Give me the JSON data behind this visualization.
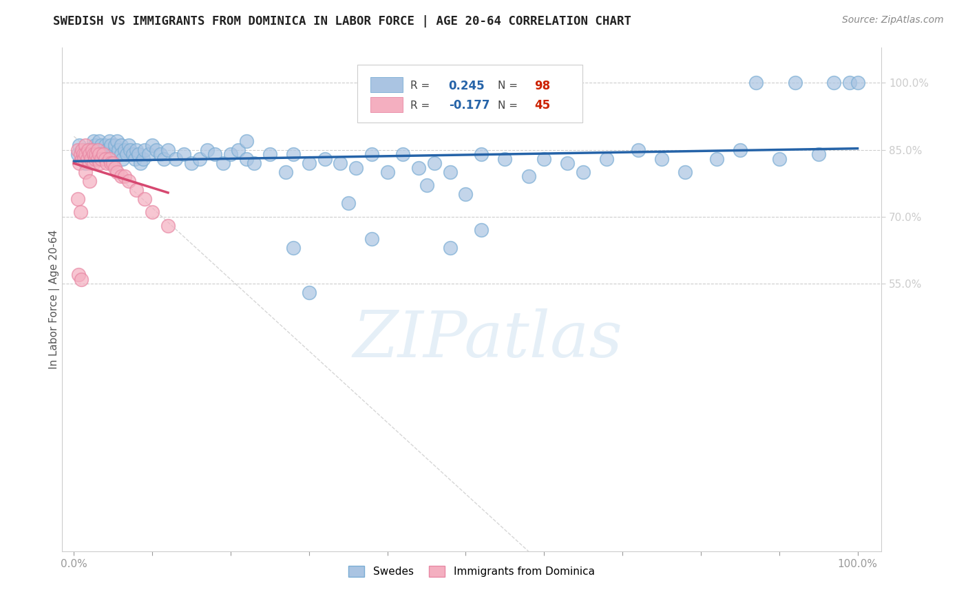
{
  "title": "SWEDISH VS IMMIGRANTS FROM DOMINICA IN LABOR FORCE | AGE 20-64 CORRELATION CHART",
  "source": "Source: ZipAtlas.com",
  "ylabel": "In Labor Force | Age 20-64",
  "y_ticks_right": [
    0.55,
    0.7,
    0.85,
    1.0
  ],
  "y_tick_labels_right": [
    "55.0%",
    "70.0%",
    "85.0%",
    "100.0%"
  ],
  "blue_R": 0.245,
  "blue_N": 98,
  "pink_R": -0.177,
  "pink_N": 45,
  "blue_color": "#aac4e2",
  "blue_edge_color": "#7aadd4",
  "blue_line_color": "#2563a8",
  "pink_color": "#f4afc0",
  "pink_edge_color": "#e888a4",
  "pink_line_color": "#d64870",
  "diagonal_color": "#cccccc",
  "background_color": "#ffffff",
  "legend_box_color": "#f5f5f5",
  "legend_edge_color": "#cccccc",
  "blue_x": [
    0.005,
    0.007,
    0.01,
    0.012,
    0.015,
    0.017,
    0.02,
    0.022,
    0.025,
    0.025,
    0.027,
    0.03,
    0.03,
    0.032,
    0.035,
    0.035,
    0.037,
    0.04,
    0.04,
    0.042,
    0.045,
    0.047,
    0.05,
    0.052,
    0.055,
    0.057,
    0.06,
    0.06,
    0.062,
    0.065,
    0.067,
    0.07,
    0.072,
    0.075,
    0.078,
    0.08,
    0.082,
    0.085,
    0.088,
    0.09,
    0.095,
    0.1,
    0.105,
    0.11,
    0.115,
    0.12,
    0.13,
    0.14,
    0.15,
    0.16,
    0.17,
    0.18,
    0.19,
    0.2,
    0.21,
    0.22,
    0.23,
    0.25,
    0.27,
    0.28,
    0.3,
    0.32,
    0.34,
    0.36,
    0.38,
    0.4,
    0.42,
    0.44,
    0.46,
    0.48,
    0.5,
    0.52,
    0.55,
    0.58,
    0.6,
    0.63,
    0.65,
    0.68,
    0.72,
    0.75,
    0.78,
    0.82,
    0.85,
    0.87,
    0.9,
    0.92,
    0.95,
    0.97,
    0.99,
    1.0,
    0.35,
    0.28,
    0.22,
    0.45,
    0.52,
    0.48,
    0.38,
    0.3
  ],
  "blue_y": [
    0.84,
    0.86,
    0.83,
    0.85,
    0.82,
    0.84,
    0.85,
    0.83,
    0.87,
    0.84,
    0.86,
    0.85,
    0.83,
    0.87,
    0.86,
    0.84,
    0.83,
    0.86,
    0.84,
    0.85,
    0.87,
    0.86,
    0.84,
    0.86,
    0.87,
    0.85,
    0.86,
    0.84,
    0.83,
    0.85,
    0.84,
    0.86,
    0.85,
    0.84,
    0.83,
    0.85,
    0.84,
    0.82,
    0.83,
    0.85,
    0.84,
    0.86,
    0.85,
    0.84,
    0.83,
    0.85,
    0.83,
    0.84,
    0.82,
    0.83,
    0.85,
    0.84,
    0.82,
    0.84,
    0.85,
    0.83,
    0.82,
    0.84,
    0.8,
    0.84,
    0.82,
    0.83,
    0.82,
    0.81,
    0.84,
    0.8,
    0.84,
    0.81,
    0.82,
    0.8,
    0.75,
    0.84,
    0.83,
    0.79,
    0.83,
    0.82,
    0.8,
    0.83,
    0.85,
    0.83,
    0.8,
    0.83,
    0.85,
    1.0,
    0.83,
    1.0,
    0.84,
    1.0,
    1.0,
    1.0,
    0.73,
    0.63,
    0.87,
    0.77,
    0.67,
    0.63,
    0.65,
    0.53
  ],
  "pink_x": [
    0.005,
    0.007,
    0.008,
    0.01,
    0.01,
    0.012,
    0.013,
    0.015,
    0.015,
    0.017,
    0.018,
    0.02,
    0.02,
    0.022,
    0.023,
    0.025,
    0.025,
    0.027,
    0.028,
    0.03,
    0.03,
    0.032,
    0.033,
    0.035,
    0.037,
    0.04,
    0.042,
    0.045,
    0.047,
    0.05,
    0.052,
    0.055,
    0.06,
    0.065,
    0.07,
    0.08,
    0.09,
    0.1,
    0.12,
    0.015,
    0.02,
    0.005,
    0.008,
    0.006,
    0.009
  ],
  "pink_y": [
    0.85,
    0.82,
    0.84,
    0.83,
    0.85,
    0.84,
    0.83,
    0.86,
    0.84,
    0.83,
    0.85,
    0.84,
    0.82,
    0.83,
    0.85,
    0.84,
    0.82,
    0.83,
    0.84,
    0.83,
    0.85,
    0.84,
    0.82,
    0.83,
    0.84,
    0.83,
    0.82,
    0.83,
    0.82,
    0.82,
    0.81,
    0.8,
    0.79,
    0.79,
    0.78,
    0.76,
    0.74,
    0.71,
    0.68,
    0.8,
    0.78,
    0.74,
    0.71,
    0.57,
    0.56
  ]
}
